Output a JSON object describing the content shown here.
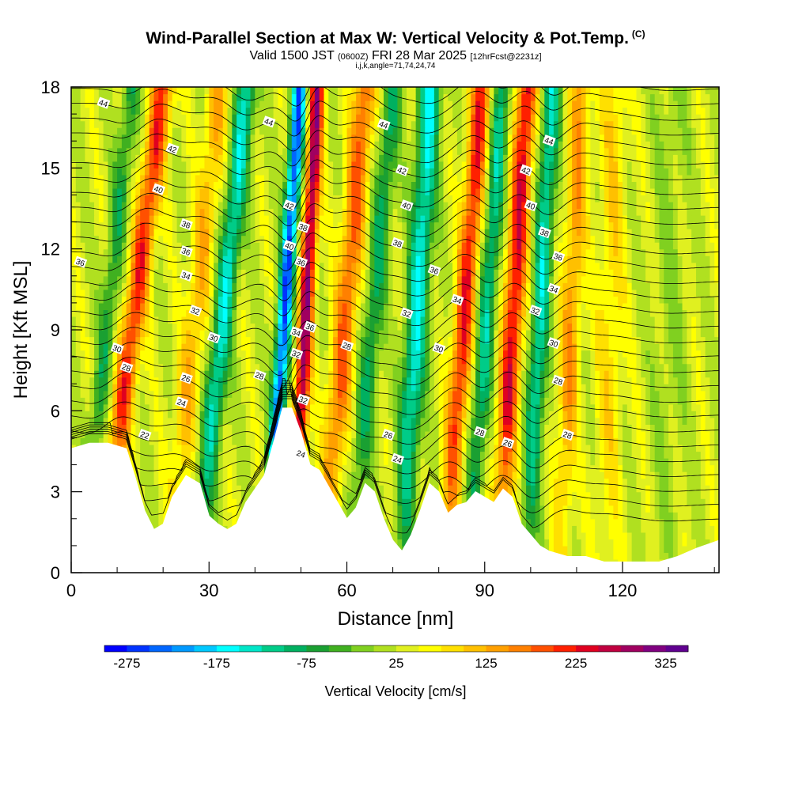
{
  "title": "Wind-Parallel Section at Max W: Vertical Velocity & Pot.Temp.",
  "copyright_mark": "(C)",
  "subtitle": {
    "valid": "Valid 1500 JST",
    "utc": "(0600Z)",
    "date": "FRI 28 Mar 2025",
    "forecast": "[12hrFcst@2231z]"
  },
  "ijk_line": "i,j,k,angle=71,74,24,74",
  "chart_data": {
    "type": "heatmap",
    "description_fields": "vertical velocity (color fill) with potential temperature contours",
    "xlabel": "Distance [nm]",
    "ylabel": "Height [Kft MSL]",
    "xlim": [
      0,
      141
    ],
    "ylim": [
      0,
      18
    ],
    "x_ticks": [
      0,
      30,
      60,
      90,
      120
    ],
    "y_ticks": [
      0,
      3,
      6,
      9,
      12,
      15,
      18
    ],
    "colorbar": {
      "label": "Vertical Velocity [cm/s]",
      "tick_labels": [
        "-275",
        "-175",
        "-75",
        "25",
        "125",
        "225",
        "325"
      ],
      "min": -300,
      "max": 350,
      "step": 25,
      "colors": [
        "#0000ff",
        "#0033ff",
        "#0066ff",
        "#0099ff",
        "#00c8ff",
        "#00ffff",
        "#00e6c8",
        "#00cc88",
        "#00b060",
        "#1aa032",
        "#40b020",
        "#80d020",
        "#b0e020",
        "#e0f020",
        "#ffff00",
        "#ffe000",
        "#ffc000",
        "#ffa000",
        "#ff8000",
        "#ff5000",
        "#ff2000",
        "#e00020",
        "#c00040",
        "#a00060",
        "#800080",
        "#600090"
      ]
    },
    "terrain_top_kft": [
      [
        0,
        4.6
      ],
      [
        4,
        4.8
      ],
      [
        8,
        4.8
      ],
      [
        12,
        4.6
      ],
      [
        14,
        3.5
      ],
      [
        16,
        2.3
      ],
      [
        18,
        1.6
      ],
      [
        20,
        1.8
      ],
      [
        22,
        2.8
      ],
      [
        25,
        3.6
      ],
      [
        28,
        3.3
      ],
      [
        30,
        2.1
      ],
      [
        32,
        1.8
      ],
      [
        34,
        1.6
      ],
      [
        36,
        1.8
      ],
      [
        38,
        2.6
      ],
      [
        42,
        3.6
      ],
      [
        44,
        4.8
      ],
      [
        46,
        6.1
      ],
      [
        48,
        6.1
      ],
      [
        50,
        5.2
      ],
      [
        52,
        4.0
      ],
      [
        54,
        3.8
      ],
      [
        56,
        3.2
      ],
      [
        58,
        2.6
      ],
      [
        60,
        2.0
      ],
      [
        62,
        2.4
      ],
      [
        64,
        3.3
      ],
      [
        66,
        3.0
      ],
      [
        68,
        2.0
      ],
      [
        70,
        1.2
      ],
      [
        72,
        0.8
      ],
      [
        74,
        1.4
      ],
      [
        76,
        2.3
      ],
      [
        78,
        3.3
      ],
      [
        80,
        3.0
      ],
      [
        82,
        2.2
      ],
      [
        84,
        2.5
      ],
      [
        86,
        2.6
      ],
      [
        88,
        3.0
      ],
      [
        90,
        2.8
      ],
      [
        92,
        2.6
      ],
      [
        94,
        3.1
      ],
      [
        96,
        2.8
      ],
      [
        98,
        1.8
      ],
      [
        100,
        1.4
      ],
      [
        102,
        1.0
      ],
      [
        104,
        0.8
      ],
      [
        108,
        0.6
      ],
      [
        112,
        0.6
      ],
      [
        116,
        0.4
      ],
      [
        120,
        0.4
      ],
      [
        124,
        0.4
      ],
      [
        128,
        0.4
      ],
      [
        132,
        0.6
      ],
      [
        136,
        0.9
      ],
      [
        141,
        1.2
      ]
    ],
    "velocity_bands": [
      {
        "x": 11,
        "w": 2.4,
        "tilt": 0.75,
        "amp": 180
      },
      {
        "x": 6,
        "w": 2.0,
        "tilt": 0.6,
        "amp": -90
      },
      {
        "x": 25,
        "w": 2.5,
        "tilt": 0.6,
        "amp": 90
      },
      {
        "x": 31,
        "w": 2.2,
        "tilt": 0.6,
        "amp": -170
      },
      {
        "x": 45,
        "w": 1.6,
        "tilt": 0.4,
        "amp": -280
      },
      {
        "x": 50,
        "w": 1.6,
        "tilt": 0.3,
        "amp": 260
      },
      {
        "x": 58,
        "w": 2.5,
        "tilt": 0.5,
        "amp": 150
      },
      {
        "x": 64,
        "w": 2.2,
        "tilt": 0.5,
        "amp": -110
      },
      {
        "x": 74,
        "w": 2.4,
        "tilt": 0.35,
        "amp": -180
      },
      {
        "x": 84,
        "w": 2.2,
        "tilt": 0.45,
        "amp": 190
      },
      {
        "x": 89,
        "w": 2.0,
        "tilt": 0.4,
        "amp": -140
      },
      {
        "x": 95,
        "w": 2.2,
        "tilt": 0.35,
        "amp": 210
      },
      {
        "x": 101,
        "w": 2.0,
        "tilt": 0.3,
        "amp": -160
      },
      {
        "x": 108,
        "w": 2.2,
        "tilt": 0.25,
        "amp": 110
      },
      {
        "x": 117,
        "w": 3.0,
        "tilt": 0.1,
        "amp": 60
      },
      {
        "x": 130,
        "w": 3.5,
        "tilt": 0.05,
        "amp": -30
      }
    ],
    "theta_contour_labels": [
      {
        "x": 7,
        "y": 17.4,
        "t": "44"
      },
      {
        "x": 22,
        "y": 15.7,
        "t": "42"
      },
      {
        "x": 19,
        "y": 14.2,
        "t": "40"
      },
      {
        "x": 25,
        "y": 12.9,
        "t": "38"
      },
      {
        "x": 25,
        "y": 11.9,
        "t": "36"
      },
      {
        "x": 25,
        "y": 11.0,
        "t": "34"
      },
      {
        "x": 27,
        "y": 9.7,
        "t": "32"
      },
      {
        "x": 31,
        "y": 8.7,
        "t": "30"
      },
      {
        "x": 10,
        "y": 8.3,
        "t": "30"
      },
      {
        "x": 12,
        "y": 7.6,
        "t": "28"
      },
      {
        "x": 25,
        "y": 7.2,
        "t": "26"
      },
      {
        "x": 24,
        "y": 6.3,
        "t": "24"
      },
      {
        "x": 16,
        "y": 5.1,
        "t": "22"
      },
      {
        "x": 2,
        "y": 11.5,
        "t": "36"
      },
      {
        "x": 43,
        "y": 16.7,
        "t": "44"
      },
      {
        "x": 47.5,
        "y": 13.6,
        "t": "42"
      },
      {
        "x": 47.5,
        "y": 12.1,
        "t": "40"
      },
      {
        "x": 50.5,
        "y": 12.8,
        "t": "38"
      },
      {
        "x": 50,
        "y": 11.5,
        "t": "36"
      },
      {
        "x": 52,
        "y": 9.1,
        "t": "36"
      },
      {
        "x": 49,
        "y": 8.9,
        "t": "34"
      },
      {
        "x": 49,
        "y": 8.1,
        "t": "32"
      },
      {
        "x": 50.5,
        "y": 6.4,
        "t": "32"
      },
      {
        "x": 50,
        "y": 4.4,
        "t": "24"
      },
      {
        "x": 41,
        "y": 7.3,
        "t": "28"
      },
      {
        "x": 60,
        "y": 8.4,
        "t": "28"
      },
      {
        "x": 68,
        "y": 16.6,
        "t": "44"
      },
      {
        "x": 72,
        "y": 14.9,
        "t": "42"
      },
      {
        "x": 73,
        "y": 13.6,
        "t": "40"
      },
      {
        "x": 71,
        "y": 12.2,
        "t": "38"
      },
      {
        "x": 79,
        "y": 11.2,
        "t": "36"
      },
      {
        "x": 73,
        "y": 9.6,
        "t": "32"
      },
      {
        "x": 80,
        "y": 8.3,
        "t": "30"
      },
      {
        "x": 84,
        "y": 10.1,
        "t": "34"
      },
      {
        "x": 69,
        "y": 5.1,
        "t": "26"
      },
      {
        "x": 71,
        "y": 4.2,
        "t": "24"
      },
      {
        "x": 89,
        "y": 5.2,
        "t": "28"
      },
      {
        "x": 95,
        "y": 4.8,
        "t": "26"
      },
      {
        "x": 104,
        "y": 16.0,
        "t": "44"
      },
      {
        "x": 99,
        "y": 14.9,
        "t": "42"
      },
      {
        "x": 100,
        "y": 13.6,
        "t": "40"
      },
      {
        "x": 103,
        "y": 12.6,
        "t": "38"
      },
      {
        "x": 106,
        "y": 11.7,
        "t": "36"
      },
      {
        "x": 105,
        "y": 10.5,
        "t": "34"
      },
      {
        "x": 101,
        "y": 9.7,
        "t": "32"
      },
      {
        "x": 105,
        "y": 8.5,
        "t": "30"
      },
      {
        "x": 106,
        "y": 7.1,
        "t": "28"
      },
      {
        "x": 108,
        "y": 5.1,
        "t": "28"
      }
    ]
  }
}
